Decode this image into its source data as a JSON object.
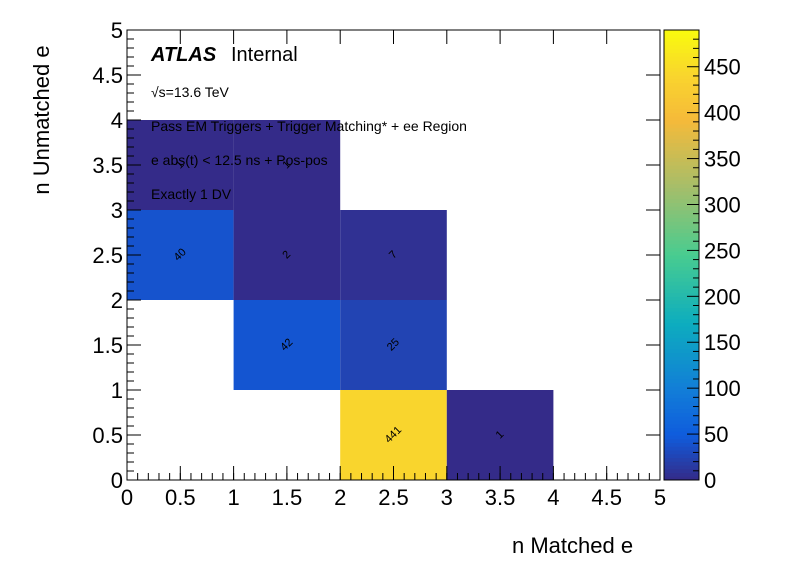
{
  "chart_data": {
    "type": "heatmap",
    "xlabel": "n Matched e",
    "ylabel": "n Unmatched e",
    "xlim": [
      0,
      5
    ],
    "ylim": [
      0,
      5
    ],
    "x_ticks": [
      "0",
      "0.5",
      "1",
      "1.5",
      "2",
      "2.5",
      "3",
      "3.5",
      "4",
      "4.5",
      "5"
    ],
    "y_ticks": [
      "0",
      "0.5",
      "1",
      "1.5",
      "2",
      "2.5",
      "3",
      "3.5",
      "4",
      "4.5",
      "5"
    ],
    "colorbar": {
      "min": 0,
      "max": 490,
      "ticks": [
        "0",
        "50",
        "100",
        "150",
        "200",
        "250",
        "300",
        "350",
        "400",
        "450"
      ]
    },
    "cells": [
      {
        "x": [
          0,
          1
        ],
        "y": [
          3,
          4
        ],
        "value": 1,
        "label": "1"
      },
      {
        "x": [
          1,
          2
        ],
        "y": [
          3,
          4
        ],
        "value": 1,
        "label": "1"
      },
      {
        "x": [
          0,
          1
        ],
        "y": [
          2,
          3
        ],
        "value": 40,
        "label": "40"
      },
      {
        "x": [
          1,
          2
        ],
        "y": [
          2,
          3
        ],
        "value": 2,
        "label": "2"
      },
      {
        "x": [
          2,
          3
        ],
        "y": [
          2,
          3
        ],
        "value": 7,
        "label": "7"
      },
      {
        "x": [
          1,
          2
        ],
        "y": [
          1,
          2
        ],
        "value": 42,
        "label": "42"
      },
      {
        "x": [
          2,
          3
        ],
        "y": [
          1,
          2
        ],
        "value": 25,
        "label": "25"
      },
      {
        "x": [
          2,
          3
        ],
        "y": [
          0,
          1
        ],
        "value": 441,
        "label": "441"
      },
      {
        "x": [
          3,
          4
        ],
        "y": [
          0,
          1
        ],
        "value": 1,
        "label": "1"
      }
    ],
    "annotations": {
      "atlas": "ATLAS",
      "internal": "Internal",
      "energy": "√s=13.6 TeV",
      "selection": "Pass EM Triggers + Trigger Matching* + ee Region",
      "timing": "e abs(t) < 12.5 ns + Pos-pos",
      "dv": "Exactly 1 DV"
    },
    "colors": {
      "low": "#352a87",
      "mid_low": "#0f5cdd",
      "high": "#f9d52d",
      "top": "#f9fb0e"
    },
    "grid": false
  }
}
